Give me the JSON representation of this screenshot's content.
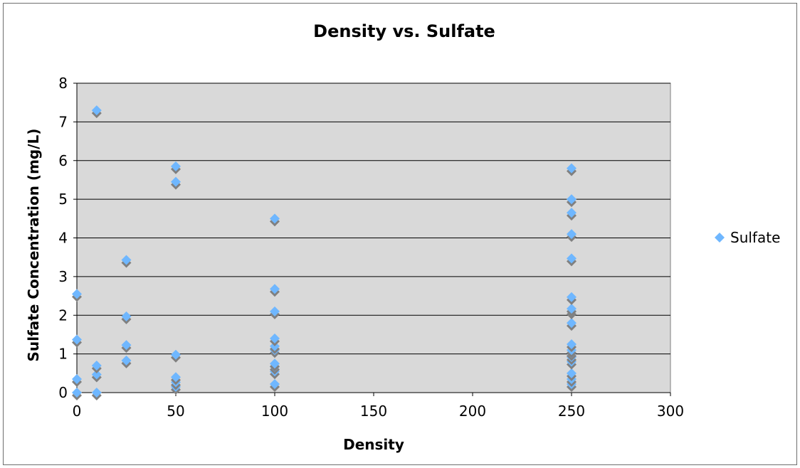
{
  "chart_data": {
    "type": "scatter",
    "title": "Density vs. Sulfate",
    "xlabel": "Density",
    "ylabel": "Sulfate Concentration (mg/L)",
    "xlim": [
      0,
      300
    ],
    "ylim": [
      0,
      8
    ],
    "x_ticks": [
      "0",
      "50",
      "100",
      "150",
      "200",
      "250",
      "300"
    ],
    "y_ticks": [
      "0",
      "1",
      "2",
      "3",
      "4",
      "5",
      "6",
      "7",
      "8"
    ],
    "grid": "horizontal major gridlines",
    "plot_background": "#d9d9d9",
    "legend_position": "right",
    "series": [
      {
        "name": "Sulfate",
        "color": "#6fb7ff",
        "shadow_color": "#808080",
        "marker": "diamond",
        "points": [
          {
            "x": 0,
            "y": 0
          },
          {
            "x": 0,
            "y": 0.35
          },
          {
            "x": 0,
            "y": 1.37
          },
          {
            "x": 0,
            "y": 2.55
          },
          {
            "x": 10,
            "y": 0
          },
          {
            "x": 10,
            "y": 0.47
          },
          {
            "x": 10,
            "y": 0.7
          },
          {
            "x": 10,
            "y": 7.3
          },
          {
            "x": 25,
            "y": 0.83
          },
          {
            "x": 25,
            "y": 1.23
          },
          {
            "x": 25,
            "y": 1.97
          },
          {
            "x": 25,
            "y": 3.43
          },
          {
            "x": 50,
            "y": 0.15
          },
          {
            "x": 50,
            "y": 0.27
          },
          {
            "x": 50,
            "y": 0.4
          },
          {
            "x": 50,
            "y": 0.98
          },
          {
            "x": 50,
            "y": 5.45
          },
          {
            "x": 50,
            "y": 5.85
          },
          {
            "x": 100,
            "y": 0.22
          },
          {
            "x": 100,
            "y": 0.55
          },
          {
            "x": 100,
            "y": 0.67
          },
          {
            "x": 100,
            "y": 0.75
          },
          {
            "x": 100,
            "y": 1.1
          },
          {
            "x": 100,
            "y": 1.2
          },
          {
            "x": 100,
            "y": 1.4
          },
          {
            "x": 100,
            "y": 2.1
          },
          {
            "x": 100,
            "y": 2.68
          },
          {
            "x": 100,
            "y": 4.5
          },
          {
            "x": 250,
            "y": 0.22
          },
          {
            "x": 250,
            "y": 0.35
          },
          {
            "x": 250,
            "y": 0.5
          },
          {
            "x": 250,
            "y": 0.8
          },
          {
            "x": 250,
            "y": 0.92
          },
          {
            "x": 250,
            "y": 1.02
          },
          {
            "x": 250,
            "y": 1.1
          },
          {
            "x": 250,
            "y": 1.25
          },
          {
            "x": 250,
            "y": 1.8
          },
          {
            "x": 250,
            "y": 2.1
          },
          {
            "x": 250,
            "y": 2.17
          },
          {
            "x": 250,
            "y": 2.47
          },
          {
            "x": 250,
            "y": 3.47
          },
          {
            "x": 250,
            "y": 4.1
          },
          {
            "x": 250,
            "y": 4.65
          },
          {
            "x": 250,
            "y": 5.0
          },
          {
            "x": 250,
            "y": 5.8
          }
        ]
      }
    ]
  }
}
